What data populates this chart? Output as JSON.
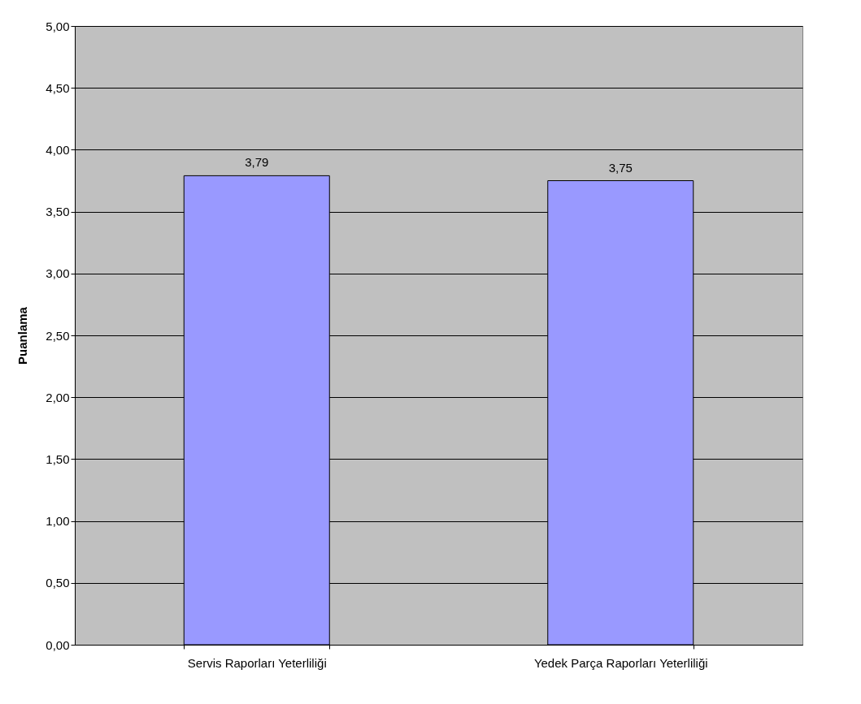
{
  "chart_data": {
    "type": "bar",
    "ylabel": "Puanlama",
    "categories": [
      "Servis Raporları Yeterliliği",
      "Yedek Parça Raporları Yeterliliği"
    ],
    "values": [
      3.79,
      3.75
    ],
    "color": "#9999ff",
    "value_labels": [
      "3,79",
      "3,75"
    ],
    "ylim": [
      0,
      5
    ],
    "yticks": [
      {
        "value": 0,
        "label": "0,00"
      },
      {
        "value": 0.5,
        "label": "0,50"
      },
      {
        "value": 1,
        "label": "1,00"
      },
      {
        "value": 1.5,
        "label": "1,50"
      },
      {
        "value": 2,
        "label": "2,00"
      },
      {
        "value": 2.5,
        "label": "2,50"
      },
      {
        "value": 3,
        "label": "3,00"
      },
      {
        "value": 3.5,
        "label": "3,50"
      },
      {
        "value": 4,
        "label": "4,00"
      },
      {
        "value": 4.5,
        "label": "4,50"
      },
      {
        "value": 5,
        "label": "5,00"
      }
    ],
    "grid": "y"
  }
}
